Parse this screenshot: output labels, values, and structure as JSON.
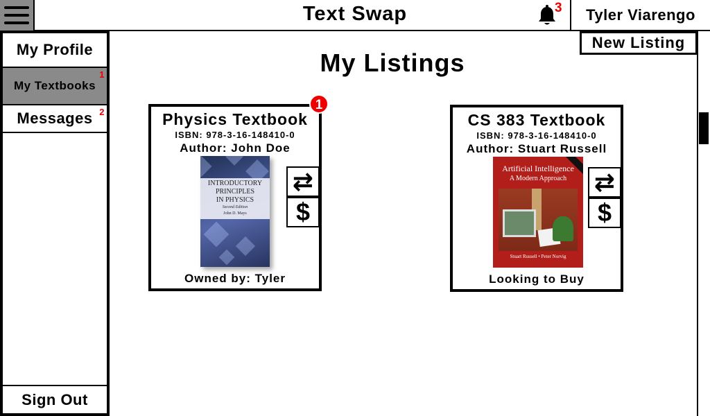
{
  "header": {
    "app_title": "Text Swap",
    "notification_count": "3",
    "user_name": "Tyler Viarengo"
  },
  "sidebar": {
    "items": [
      {
        "label": "My Profile",
        "badge": ""
      },
      {
        "label": "My Textbooks",
        "badge": "1",
        "active": true
      },
      {
        "label": "Messages",
        "badge": "2"
      }
    ],
    "sign_out": "Sign Out"
  },
  "main": {
    "page_title": "My Listings",
    "new_listing_label": "New Listing"
  },
  "listings": [
    {
      "title": "Physics Textbook",
      "isbn": "ISBN: 978-3-16-148410-0",
      "author": "Author: John Doe",
      "status": "Owned by: Tyler",
      "badge": "1",
      "cover": {
        "title_line1": "INTRODUCTORY",
        "title_line2": "PRINCIPLES",
        "title_line3": "IN PHYSICS",
        "edition": "Second Edition",
        "author": "John D. Mays"
      },
      "actions": {
        "swap_icon": "⇄",
        "buy_icon": "$"
      }
    },
    {
      "title": "CS 383 Textbook",
      "isbn": "ISBN: 978-3-16-148410-0",
      "author": "Author: Stuart Russell",
      "status": "Looking to Buy",
      "cover": {
        "title_line1": "Artificial Intelligence",
        "title_line2": "A Modern Approach",
        "authors": "Stuart Russell • Peter Norvig"
      },
      "actions": {
        "swap_icon": "⇄",
        "buy_icon": "$"
      }
    }
  ],
  "colors": {
    "accent_gray": "#8a8a8a",
    "badge_red": "#e00000",
    "ai_cover_red": "#b21f1a"
  }
}
